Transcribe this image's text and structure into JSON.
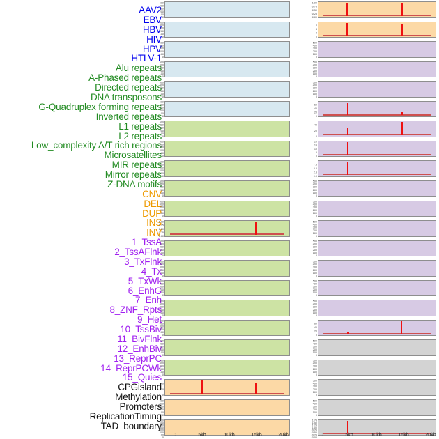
{
  "chart_data": {
    "type": "area",
    "title": "",
    "x_unit": "kb",
    "x_range_kb": [
      0,
      20
    ],
    "x_ticks": [
      "0",
      "5kb",
      "10kb",
      "15kb",
      "20kb"
    ],
    "grid": false,
    "legend": "none",
    "layout": "two columns of 22 stacked track panels, 44 right-aligned track labels on the left",
    "palette": {
      "label_virus": "#0000EE",
      "label_repeat": "#228B22",
      "label_sv": "#EE9A00",
      "label_chromatin": "#A020F0",
      "label_other": "#111111",
      "panel_blue": "#D7E8F0",
      "panel_green": "#CDE3A4",
      "panel_orange": "#FCD9A6",
      "panel_purple": "#D7CAE4",
      "panel_gray": "#D3D3D3",
      "panel_border": "#8E8E8E",
      "spike_red": "#EE1111",
      "baseline_red": "#CE5050",
      "tick_text": "#4a4a4a"
    },
    "default_yticks": [
      "500",
      "400",
      "300",
      "200",
      "100",
      "0"
    ],
    "tracks": [
      {
        "name": "AAV2",
        "group": "virus",
        "column": "left",
        "panel": "blue",
        "yticks": [
          "500",
          "400",
          "300",
          "200",
          "100",
          "0"
        ],
        "spikes": [],
        "baseline": false
      },
      {
        "name": "EBV",
        "group": "virus",
        "column": "left",
        "panel": "blue",
        "yticks": [
          "500",
          "400",
          "300",
          "200",
          "100",
          "0"
        ],
        "spikes": [],
        "baseline": false
      },
      {
        "name": "HBV",
        "group": "virus",
        "column": "left",
        "panel": "blue",
        "yticks": [
          "500",
          "400",
          "300",
          "200",
          "100",
          "0"
        ],
        "spikes": [],
        "baseline": false
      },
      {
        "name": "HIV",
        "group": "virus",
        "column": "left",
        "panel": "blue",
        "yticks": [
          "500",
          "400",
          "300",
          "200",
          "100",
          "0"
        ],
        "spikes": [],
        "baseline": false
      },
      {
        "name": "HPV",
        "group": "virus",
        "column": "left",
        "panel": "blue",
        "yticks": [
          "500",
          "400",
          "300",
          "200",
          "100",
          "0"
        ],
        "spikes": [],
        "baseline": false
      },
      {
        "name": "HTLV-1",
        "group": "virus",
        "column": "left",
        "panel": "blue",
        "yticks": [
          "500",
          "400",
          "300",
          "200",
          "100",
          "0"
        ],
        "spikes": [],
        "baseline": false
      },
      {
        "name": "Alu repeats",
        "group": "repeat",
        "column": "left",
        "panel": "green",
        "yticks": [
          "500",
          "400",
          "300",
          "200",
          "100",
          "0"
        ],
        "spikes": [],
        "baseline": false
      },
      {
        "name": "A-Phased repeats",
        "group": "repeat",
        "column": "left",
        "panel": "green",
        "yticks": [
          "500",
          "400",
          "300",
          "200",
          "100",
          "0"
        ],
        "spikes": [],
        "baseline": false
      },
      {
        "name": "Directed repeats",
        "group": "repeat",
        "column": "left",
        "panel": "green",
        "yticks": [
          "500",
          "400",
          "300",
          "200",
          "100",
          "0"
        ],
        "spikes": [],
        "baseline": false
      },
      {
        "name": "DNA transposons",
        "group": "repeat",
        "column": "left",
        "panel": "green",
        "yticks": [
          "500",
          "400",
          "300",
          "200",
          "100",
          "0"
        ],
        "spikes": [],
        "baseline": false
      },
      {
        "name": "G-Quadruplex forming repeats",
        "group": "repeat",
        "column": "left",
        "panel": "green",
        "yticks": [
          "500",
          "400",
          "300",
          "200",
          "100",
          "0"
        ],
        "spikes": [],
        "baseline": false
      },
      {
        "name": "Inverted repeats",
        "group": "repeat",
        "column": "left",
        "panel": "green",
        "yticks": [
          "1.00",
          "0.75",
          "0.50",
          "0.25",
          "0.00"
        ],
        "spikes": [
          {
            "x_kb": 15,
            "value": 0.93,
            "frac": 0.93
          }
        ],
        "baseline": true
      },
      {
        "name": "L1 repeats",
        "group": "repeat",
        "column": "left",
        "panel": "green",
        "yticks": [
          "500",
          "400",
          "300",
          "200",
          "100",
          "0"
        ],
        "spikes": [],
        "baseline": false
      },
      {
        "name": "L2 repeats",
        "group": "repeat",
        "column": "left",
        "panel": "green",
        "yticks": [
          "500",
          "400",
          "300",
          "200",
          "100",
          "0"
        ],
        "spikes": [],
        "baseline": false
      },
      {
        "name": "Low_complexity A/T rich regions",
        "group": "repeat",
        "column": "left",
        "panel": "green",
        "yticks": [
          "500",
          "400",
          "300",
          "200",
          "100",
          "0"
        ],
        "spikes": [],
        "baseline": false
      },
      {
        "name": "Microsatellites",
        "group": "repeat",
        "column": "left",
        "panel": "green",
        "yticks": [
          "500",
          "400",
          "300",
          "200",
          "100",
          "0"
        ],
        "spikes": [],
        "baseline": false
      },
      {
        "name": "MIR repeats",
        "group": "repeat",
        "column": "left",
        "panel": "green",
        "yticks": [
          "500",
          "400",
          "300",
          "200",
          "100",
          "0"
        ],
        "spikes": [],
        "baseline": false
      },
      {
        "name": "Mirror repeats",
        "group": "repeat",
        "column": "left",
        "panel": "green",
        "yticks": [
          "500",
          "400",
          "300",
          "200",
          "100",
          "0"
        ],
        "spikes": [],
        "baseline": false
      },
      {
        "name": "Z-DNA motifs",
        "group": "repeat",
        "column": "left",
        "panel": "green",
        "yticks": [
          "500",
          "400",
          "300",
          "200",
          "100",
          "0"
        ],
        "spikes": [],
        "baseline": false
      },
      {
        "name": "CNV",
        "group": "sv",
        "column": "left",
        "panel": "orange",
        "yticks": [
          "40",
          "20",
          "0"
        ],
        "spikes": [
          {
            "x_kb": 5,
            "value": 46,
            "frac": 1.0
          },
          {
            "x_kb": 15,
            "value": 38,
            "frac": 0.8
          }
        ],
        "baseline": true
      },
      {
        "name": "DEL",
        "group": "sv",
        "column": "left",
        "panel": "orange",
        "yticks": [
          "500",
          "400",
          "300",
          "200",
          "100",
          "0"
        ],
        "spikes": [],
        "baseline": false
      },
      {
        "name": "DUP",
        "group": "sv",
        "column": "left",
        "panel": "orange",
        "yticks": [
          "700",
          "600",
          "500",
          "400",
          "300",
          "200",
          "100",
          "0"
        ],
        "spikes": [],
        "baseline": false
      },
      {
        "name": "INS",
        "group": "sv",
        "column": "right",
        "panel": "orange",
        "yticks": [
          "1.00",
          "0.75",
          "0.50",
          "0.25",
          "0.00"
        ],
        "spikes": [
          {
            "x_kb": 4.6,
            "value": 1.0,
            "frac": 1.0
          },
          {
            "x_kb": 14.9,
            "value": 1.0,
            "frac": 1.0
          }
        ],
        "baseline": true
      },
      {
        "name": "INV",
        "group": "sv",
        "column": "right",
        "panel": "orange",
        "yticks": [
          "6",
          "4",
          "2",
          "0"
        ],
        "spikes": [
          {
            "x_kb": 4.6,
            "value": 6.8,
            "frac": 1.0
          },
          {
            "x_kb": 14.9,
            "value": 5.9,
            "frac": 0.87
          }
        ],
        "baseline": true
      },
      {
        "name": "1_TssA",
        "group": "chromatin",
        "column": "right",
        "panel": "purple",
        "yticks": [
          "500",
          "400",
          "300",
          "200",
          "100",
          "0"
        ],
        "spikes": [],
        "baseline": false
      },
      {
        "name": "2_TssAFlnk",
        "group": "chromatin",
        "column": "right",
        "panel": "purple",
        "yticks": [
          "500",
          "400",
          "300",
          "200",
          "100",
          "0"
        ],
        "spikes": [],
        "baseline": false
      },
      {
        "name": "3_TxFlnk",
        "group": "chromatin",
        "column": "right",
        "panel": "purple",
        "yticks": [
          "500",
          "400",
          "300",
          "200",
          "100",
          "0"
        ],
        "spikes": [],
        "baseline": false
      },
      {
        "name": "4_Tx",
        "group": "chromatin",
        "column": "right",
        "panel": "purple",
        "yticks": [
          "60",
          "40",
          "20",
          "0"
        ],
        "spikes": [
          {
            "x_kb": 4.8,
            "value": 64,
            "frac": 0.95
          },
          {
            "x_kb": 14.9,
            "value": 16,
            "frac": 0.24
          }
        ],
        "baseline": true
      },
      {
        "name": "5_TxWk",
        "group": "chromatin",
        "column": "right",
        "panel": "purple",
        "yticks": [
          "40",
          "20",
          "0"
        ],
        "spikes": [
          {
            "x_kb": 4.8,
            "value": 28,
            "frac": 0.6
          },
          {
            "x_kb": 14.9,
            "value": 47,
            "frac": 1.0
          }
        ],
        "baseline": true
      },
      {
        "name": "6_EnhG",
        "group": "chromatin",
        "column": "right",
        "panel": "purple",
        "yticks": [
          "20",
          "15",
          "10",
          "5",
          "0"
        ],
        "spikes": [
          {
            "x_kb": 4.8,
            "value": 22,
            "frac": 1.0
          }
        ],
        "baseline": true
      },
      {
        "name": "7_Enh",
        "group": "chromatin",
        "column": "right",
        "panel": "purple",
        "yticks": [
          "7.5",
          "5.0",
          "2.5",
          "0.0"
        ],
        "spikes": [
          {
            "x_kb": 4.8,
            "value": 8.2,
            "frac": 1.0
          }
        ],
        "baseline": true
      },
      {
        "name": "8_ZNF_Rpts",
        "group": "chromatin",
        "column": "right",
        "panel": "purple",
        "yticks": [
          "500",
          "400",
          "300",
          "200",
          "100",
          "0"
        ],
        "spikes": [],
        "baseline": false
      },
      {
        "name": "9_Het",
        "group": "chromatin",
        "column": "right",
        "panel": "purple",
        "yticks": [
          "500",
          "400",
          "300",
          "200",
          "100",
          "0"
        ],
        "spikes": [],
        "baseline": false
      },
      {
        "name": "10_TssBiv",
        "group": "chromatin",
        "column": "right",
        "panel": "purple",
        "yticks": [
          "500",
          "400",
          "300",
          "200",
          "100",
          "0"
        ],
        "spikes": [],
        "baseline": false
      },
      {
        "name": "11_BivFlnk",
        "group": "chromatin",
        "column": "right",
        "panel": "purple",
        "yticks": [
          "500",
          "400",
          "300",
          "200",
          "100",
          "0"
        ],
        "spikes": [],
        "baseline": false
      },
      {
        "name": "12_EnhBiv",
        "group": "chromatin",
        "column": "right",
        "panel": "purple",
        "yticks": [
          "500",
          "400",
          "300",
          "200",
          "100",
          "0"
        ],
        "spikes": [],
        "baseline": false
      },
      {
        "name": "13_ReprPC",
        "group": "chromatin",
        "column": "right",
        "panel": "purple",
        "yticks": [
          "500",
          "400",
          "300",
          "200",
          "100",
          "0"
        ],
        "spikes": [],
        "baseline": false
      },
      {
        "name": "14_ReprPCWk",
        "group": "chromatin",
        "column": "right",
        "panel": "purple",
        "yticks": [
          "500",
          "400",
          "300",
          "200",
          "100",
          "0"
        ],
        "spikes": [],
        "baseline": false
      },
      {
        "name": "15_Quies",
        "group": "chromatin",
        "column": "right",
        "panel": "purple",
        "yticks": [
          "60",
          "40",
          "20",
          "0"
        ],
        "spikes": [
          {
            "x_kb": 4.9,
            "value": 7,
            "frac": 0.1
          },
          {
            "x_kb": 14.7,
            "value": 68,
            "frac": 1.0
          }
        ],
        "baseline": true
      },
      {
        "name": "CPGisland",
        "group": "other",
        "column": "right",
        "panel": "gray",
        "yticks": [
          "500",
          "400",
          "300",
          "200",
          "100",
          "0"
        ],
        "spikes": [],
        "baseline": false
      },
      {
        "name": "Methylation",
        "group": "other",
        "column": "right",
        "panel": "gray",
        "yticks": [
          "500",
          "400",
          "300",
          "200",
          "100",
          "0"
        ],
        "spikes": [],
        "baseline": false
      },
      {
        "name": "Promoters",
        "group": "other",
        "column": "right",
        "panel": "gray",
        "yticks": [
          "500",
          "400",
          "300",
          "200",
          "100",
          "0"
        ],
        "spikes": [],
        "baseline": false
      },
      {
        "name": "ReplicationTiming",
        "group": "other",
        "column": "right",
        "panel": "gray",
        "yticks": [
          "500",
          "400",
          "300",
          "200",
          "100",
          "0"
        ],
        "spikes": [],
        "baseline": false
      },
      {
        "name": "TAD_boundary",
        "group": "other",
        "column": "right",
        "panel": "gray",
        "yticks": [
          "1.75",
          "1.50",
          "1.25",
          "1.00",
          "0.75",
          "0.50",
          "0.25",
          "0.00"
        ],
        "spikes": [
          {
            "x_kb": 4.8,
            "value": 1.0,
            "frac": 1.0
          }
        ],
        "baseline": true
      }
    ]
  }
}
